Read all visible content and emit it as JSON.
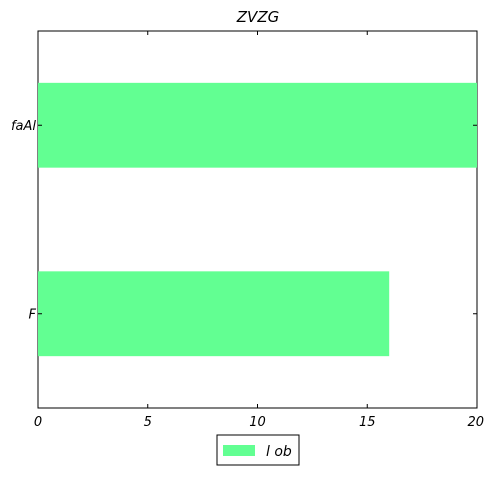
{
  "chart_data": {
    "type": "bar",
    "orientation": "horizontal",
    "title": "ZVZG",
    "xlabel": "",
    "ylabel": "",
    "categories": [
      "faAl",
      "F"
    ],
    "series": [
      {
        "name": "l ob",
        "values": [
          20,
          16
        ],
        "color": "#62ff92"
      }
    ],
    "xlim": [
      0,
      20
    ],
    "xticks": [
      0,
      5,
      10,
      15,
      20
    ],
    "grid": false,
    "legend_position": "bottom-center"
  }
}
